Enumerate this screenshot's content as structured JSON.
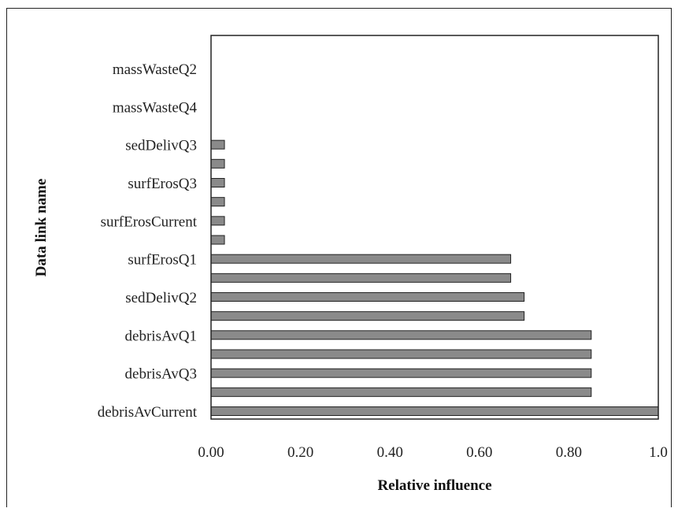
{
  "chart_data": {
    "type": "bar",
    "orientation": "horizontal",
    "categories": [
      "debrisAvCurrent",
      "",
      "debrisAvQ3",
      "",
      "debrisAvQ1",
      "",
      "sedDelivQ2",
      "",
      "surfErosQ1",
      "",
      "surfErosCurrent",
      "",
      "surfErosQ3",
      "",
      "sedDelivQ3",
      "",
      "massWasteQ4",
      "",
      "massWasteQ2"
    ],
    "values": [
      1.0,
      0.85,
      0.85,
      0.85,
      0.85,
      0.7,
      0.7,
      0.67,
      0.67,
      0.03,
      0.03,
      0.03,
      0.03,
      0.03,
      0.03,
      0.0,
      0.0,
      0.0,
      0.0
    ],
    "xlabel": "Relative influence",
    "ylabel": "Data link name",
    "xlim": [
      0,
      1.0
    ],
    "xticks": [
      "0.00",
      "0.20",
      "0.40",
      "0.60",
      "0.80",
      "1.0"
    ],
    "xtick_values": [
      0,
      0.2,
      0.4,
      0.6,
      0.8,
      1.0
    ],
    "grid": false,
    "bar_color": "#8a8a8a"
  }
}
